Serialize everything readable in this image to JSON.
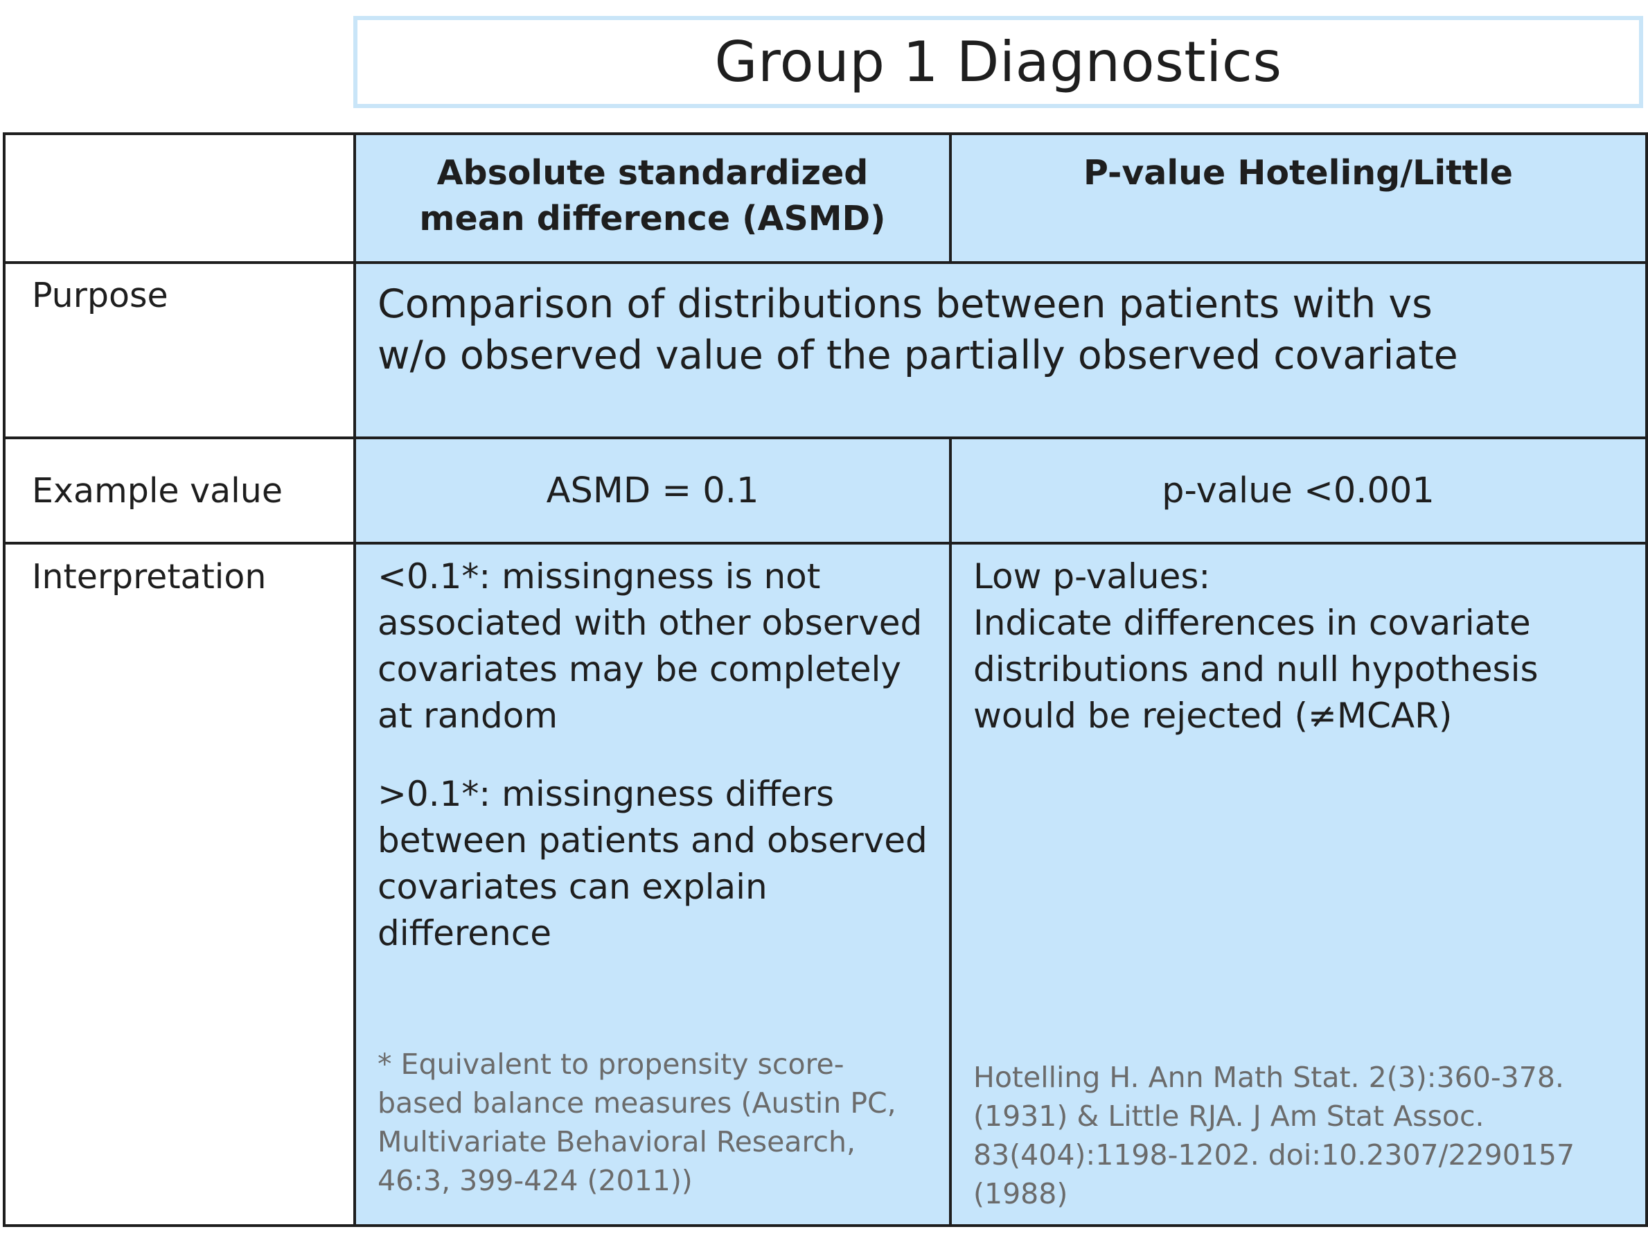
{
  "title": "Group 1 Diagnostics",
  "columns": {
    "asmd_header": "Absolute standardized mean difference (ASMD)",
    "pvalue_header": "P-value Hoteling/Little"
  },
  "rows": {
    "purpose": {
      "label": "Purpose",
      "text": "Comparison of distributions between patients with vs w/o observed value of the partially observed covariate"
    },
    "example": {
      "label": "Example value",
      "asmd": "ASMD = 0.1",
      "pvalue": "p-value <0.001"
    },
    "interpretation": {
      "label": "Interpretation",
      "asmd_low_key": "<0.1*",
      "asmd_low_text": ": missingness is not associated with other observed covariates may be completely at random",
      "asmd_high_key": ">0.1*",
      "asmd_high_text": ": missingness differs between patients and observed covariates can explain difference",
      "asmd_footnote": "* Equivalent to propensity score-based balance measures (Austin PC, Multivariate Behavioral Research, 46:3, 399-424 (2011))",
      "pvalue_title": "Low p-values:",
      "pvalue_text": "Indicate differences in covariate distributions and null hypothesis would be rejected (≠MCAR)",
      "pvalue_reference": "Hotelling H. Ann Math Stat. 2(3):360-378. (1931) & Little RJA. J Am Stat Assoc. 83(404):1198-1202. doi:10.2307/2290157 (1988)"
    }
  },
  "colors": {
    "cell_fill": "#c6e5fb",
    "title_border": "#c9e5f8",
    "grid": "#1e1e1e",
    "note_text": "#6b6b6b"
  }
}
